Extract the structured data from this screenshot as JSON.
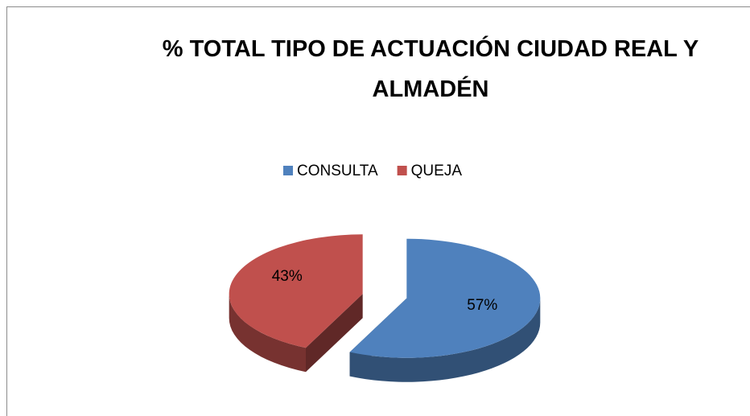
{
  "chart_data": {
    "type": "pie",
    "title": "% TOTAL TIPO DE ACTUACIÓN CIUDAD REAL Y ALMADÉN",
    "categories": [
      "CONSULTA",
      "QUEJA"
    ],
    "values": [
      57,
      43
    ],
    "value_labels": [
      "57%",
      "43%"
    ],
    "colors": [
      "#4f81bd",
      "#c0504d"
    ],
    "legend": "top",
    "exploded": true,
    "three_d": true
  }
}
